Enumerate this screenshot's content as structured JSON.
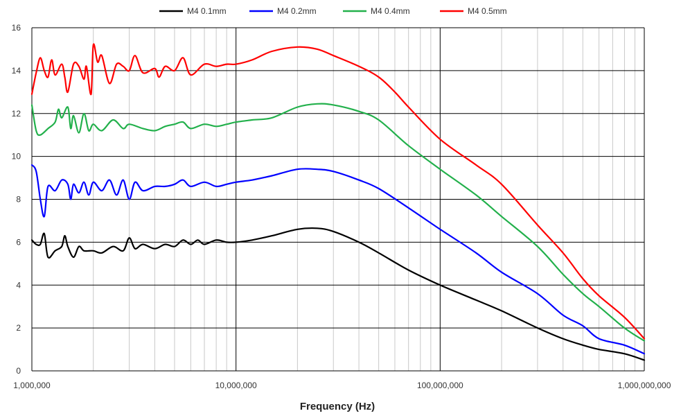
{
  "chart_data": {
    "type": "line",
    "title": "",
    "xlabel": "Frequency (Hz)",
    "ylabel": "",
    "x_scale": "log",
    "xlim": [
      1000000,
      1000000000
    ],
    "ylim": [
      0,
      16
    ],
    "grid": true,
    "legend_position": "top",
    "x_ticks": [
      1000000,
      10000000,
      100000000,
      1000000000
    ],
    "x_tick_labels": [
      "1,000,000",
      "10,000,000",
      "100,000,000",
      "1,000,000,000"
    ],
    "y_ticks": [
      0,
      2,
      4,
      6,
      8,
      10,
      12,
      14,
      16
    ],
    "y_tick_labels": [
      "0",
      "2",
      "4",
      "6",
      "8",
      "10",
      "12",
      "14",
      "16"
    ],
    "series": [
      {
        "name": "M4 0.1mm",
        "color": "#000000",
        "points": [
          [
            1000000,
            6.1
          ],
          [
            1050000,
            5.9
          ],
          [
            1100000,
            5.9
          ],
          [
            1150000,
            6.4
          ],
          [
            1200000,
            5.3
          ],
          [
            1300000,
            5.6
          ],
          [
            1400000,
            5.8
          ],
          [
            1450000,
            6.3
          ],
          [
            1500000,
            5.8
          ],
          [
            1600000,
            5.3
          ],
          [
            1700000,
            5.8
          ],
          [
            1800000,
            5.6
          ],
          [
            2000000,
            5.6
          ],
          [
            2200000,
            5.5
          ],
          [
            2500000,
            5.8
          ],
          [
            2800000,
            5.6
          ],
          [
            3000000,
            6.2
          ],
          [
            3200000,
            5.7
          ],
          [
            3500000,
            5.9
          ],
          [
            4000000,
            5.7
          ],
          [
            4500000,
            5.9
          ],
          [
            5000000,
            5.8
          ],
          [
            5500000,
            6.1
          ],
          [
            6000000,
            5.9
          ],
          [
            6500000,
            6.1
          ],
          [
            7000000,
            5.9
          ],
          [
            8000000,
            6.1
          ],
          [
            9000000,
            6.0
          ],
          [
            10000000,
            6.0
          ],
          [
            12000000,
            6.1
          ],
          [
            15000000,
            6.3
          ],
          [
            20000000,
            6.6
          ],
          [
            25000000,
            6.65
          ],
          [
            30000000,
            6.5
          ],
          [
            40000000,
            6.0
          ],
          [
            50000000,
            5.5
          ],
          [
            70000000,
            4.7
          ],
          [
            100000000,
            4.0
          ],
          [
            150000000,
            3.3
          ],
          [
            200000000,
            2.8
          ],
          [
            300000000,
            2.0
          ],
          [
            400000000,
            1.5
          ],
          [
            500000000,
            1.2
          ],
          [
            600000000,
            1.0
          ],
          [
            800000000,
            0.8
          ],
          [
            1000000000,
            0.5
          ]
        ]
      },
      {
        "name": "M4 0.2mm",
        "color": "#0000ff",
        "points": [
          [
            1000000,
            9.6
          ],
          [
            1050000,
            9.3
          ],
          [
            1100000,
            8.0
          ],
          [
            1150000,
            7.2
          ],
          [
            1200000,
            8.6
          ],
          [
            1300000,
            8.4
          ],
          [
            1400000,
            8.9
          ],
          [
            1500000,
            8.7
          ],
          [
            1550000,
            8.0
          ],
          [
            1600000,
            8.7
          ],
          [
            1700000,
            8.3
          ],
          [
            1800000,
            8.8
          ],
          [
            1900000,
            8.2
          ],
          [
            2000000,
            8.8
          ],
          [
            2200000,
            8.4
          ],
          [
            2400000,
            8.9
          ],
          [
            2600000,
            8.2
          ],
          [
            2800000,
            8.9
          ],
          [
            3000000,
            8.0
          ],
          [
            3200000,
            8.8
          ],
          [
            3500000,
            8.4
          ],
          [
            4000000,
            8.6
          ],
          [
            4500000,
            8.6
          ],
          [
            5000000,
            8.7
          ],
          [
            5500000,
            8.9
          ],
          [
            6000000,
            8.6
          ],
          [
            7000000,
            8.8
          ],
          [
            8000000,
            8.6
          ],
          [
            9000000,
            8.7
          ],
          [
            10000000,
            8.8
          ],
          [
            12000000,
            8.9
          ],
          [
            15000000,
            9.1
          ],
          [
            20000000,
            9.4
          ],
          [
            25000000,
            9.4
          ],
          [
            30000000,
            9.3
          ],
          [
            40000000,
            8.9
          ],
          [
            50000000,
            8.5
          ],
          [
            70000000,
            7.6
          ],
          [
            100000000,
            6.6
          ],
          [
            150000000,
            5.5
          ],
          [
            200000000,
            4.6
          ],
          [
            300000000,
            3.6
          ],
          [
            400000000,
            2.6
          ],
          [
            500000000,
            2.1
          ],
          [
            600000000,
            1.5
          ],
          [
            800000000,
            1.2
          ],
          [
            1000000000,
            0.8
          ]
        ]
      },
      {
        "name": "M4 0.4mm",
        "color": "#22b04b",
        "points": [
          [
            1000000,
            12.4
          ],
          [
            1050000,
            11.2
          ],
          [
            1100000,
            11.0
          ],
          [
            1200000,
            11.3
          ],
          [
            1300000,
            11.6
          ],
          [
            1350000,
            12.2
          ],
          [
            1400000,
            11.8
          ],
          [
            1500000,
            12.3
          ],
          [
            1550000,
            11.3
          ],
          [
            1600000,
            11.9
          ],
          [
            1700000,
            11.1
          ],
          [
            1800000,
            12.0
          ],
          [
            1900000,
            11.2
          ],
          [
            2000000,
            11.5
          ],
          [
            2200000,
            11.2
          ],
          [
            2500000,
            11.7
          ],
          [
            2800000,
            11.3
          ],
          [
            3000000,
            11.5
          ],
          [
            3500000,
            11.3
          ],
          [
            4000000,
            11.2
          ],
          [
            4500000,
            11.4
          ],
          [
            5000000,
            11.5
          ],
          [
            5500000,
            11.6
          ],
          [
            6000000,
            11.3
          ],
          [
            7000000,
            11.5
          ],
          [
            8000000,
            11.4
          ],
          [
            9000000,
            11.5
          ],
          [
            10000000,
            11.6
          ],
          [
            12000000,
            11.7
          ],
          [
            15000000,
            11.8
          ],
          [
            20000000,
            12.3
          ],
          [
            25000000,
            12.45
          ],
          [
            30000000,
            12.4
          ],
          [
            40000000,
            12.1
          ],
          [
            50000000,
            11.7
          ],
          [
            70000000,
            10.5
          ],
          [
            100000000,
            9.4
          ],
          [
            150000000,
            8.2
          ],
          [
            200000000,
            7.2
          ],
          [
            300000000,
            5.8
          ],
          [
            400000000,
            4.5
          ],
          [
            500000000,
            3.6
          ],
          [
            600000000,
            3.0
          ],
          [
            800000000,
            2.0
          ],
          [
            1000000000,
            1.4
          ]
        ]
      },
      {
        "name": "M4 0.5mm",
        "color": "#ff0000",
        "points": [
          [
            1000000,
            12.9
          ],
          [
            1050000,
            13.9
          ],
          [
            1100000,
            14.6
          ],
          [
            1150000,
            14.0
          ],
          [
            1200000,
            13.7
          ],
          [
            1250000,
            14.5
          ],
          [
            1300000,
            13.8
          ],
          [
            1400000,
            14.3
          ],
          [
            1450000,
            13.7
          ],
          [
            1500000,
            13.0
          ],
          [
            1600000,
            14.3
          ],
          [
            1700000,
            14.2
          ],
          [
            1800000,
            13.6
          ],
          [
            1850000,
            14.2
          ],
          [
            1950000,
            12.9
          ],
          [
            2000000,
            15.2
          ],
          [
            2100000,
            14.4
          ],
          [
            2200000,
            14.7
          ],
          [
            2400000,
            13.4
          ],
          [
            2600000,
            14.3
          ],
          [
            2800000,
            14.2
          ],
          [
            3000000,
            14.0
          ],
          [
            3200000,
            14.7
          ],
          [
            3500000,
            13.9
          ],
          [
            4000000,
            14.1
          ],
          [
            4200000,
            13.7
          ],
          [
            4500000,
            14.2
          ],
          [
            5000000,
            14.0
          ],
          [
            5500000,
            14.6
          ],
          [
            6000000,
            13.8
          ],
          [
            7000000,
            14.3
          ],
          [
            8000000,
            14.2
          ],
          [
            9000000,
            14.3
          ],
          [
            10000000,
            14.3
          ],
          [
            12000000,
            14.5
          ],
          [
            15000000,
            14.9
          ],
          [
            20000000,
            15.1
          ],
          [
            25000000,
            15.0
          ],
          [
            30000000,
            14.7
          ],
          [
            40000000,
            14.2
          ],
          [
            50000000,
            13.7
          ],
          [
            60000000,
            13.0
          ],
          [
            70000000,
            12.3
          ],
          [
            100000000,
            10.8
          ],
          [
            150000000,
            9.6
          ],
          [
            200000000,
            8.7
          ],
          [
            300000000,
            6.8
          ],
          [
            400000000,
            5.5
          ],
          [
            500000000,
            4.3
          ],
          [
            600000000,
            3.5
          ],
          [
            800000000,
            2.5
          ],
          [
            1000000000,
            1.5
          ]
        ]
      }
    ]
  }
}
